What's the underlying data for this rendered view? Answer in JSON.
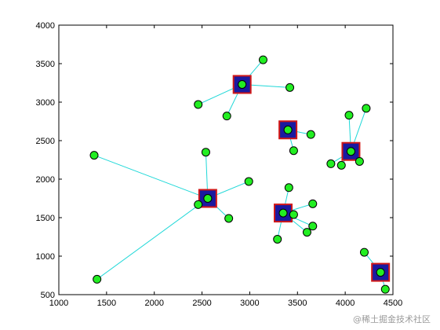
{
  "chart_data": {
    "type": "scatter",
    "title": "",
    "xlabel": "",
    "ylabel": "",
    "xlim": [
      1000,
      4500
    ],
    "ylim": [
      500,
      4000
    ],
    "xticks": [
      "1000",
      "1500",
      "2000",
      "2500",
      "3000",
      "3500",
      "4000",
      "4500"
    ],
    "yticks": [
      "4000",
      "3500",
      "3000",
      "2500",
      "2000",
      "1500",
      "1000",
      "500"
    ],
    "grid": false,
    "colors": {
      "centroid_fill": "#1a1aa0",
      "centroid_border": "#d01818",
      "point_fill": "#22ee22",
      "point_edge": "#000000",
      "link": "#20d8d8"
    },
    "clusters": [
      {
        "centroid": [
          2560,
          1750
        ],
        "points": [
          [
            1370,
            2310
          ],
          [
            1400,
            700
          ],
          [
            2540,
            2350
          ],
          [
            2460,
            1670
          ],
          [
            2780,
            1490
          ],
          [
            2990,
            1970
          ],
          [
            2560,
            1750
          ]
        ]
      },
      {
        "centroid": [
          2920,
          3230
        ],
        "points": [
          [
            2460,
            2970
          ],
          [
            2760,
            2820
          ],
          [
            3140,
            3550
          ],
          [
            3420,
            3190
          ],
          [
            2920,
            3230
          ]
        ]
      },
      {
        "centroid": [
          3400,
          2640
        ],
        "points": [
          [
            3640,
            2580
          ],
          [
            3460,
            2370
          ],
          [
            3400,
            2640
          ]
        ]
      },
      {
        "centroid": [
          4060,
          2360
        ],
        "points": [
          [
            3850,
            2200
          ],
          [
            3960,
            2180
          ],
          [
            4040,
            2830
          ],
          [
            4220,
            2920
          ],
          [
            4150,
            2230
          ],
          [
            4060,
            2360
          ]
        ]
      },
      {
        "centroid": [
          3350,
          1560
        ],
        "points": [
          [
            3410,
            1890
          ],
          [
            3290,
            1220
          ],
          [
            3460,
            1540
          ],
          [
            3600,
            1310
          ],
          [
            3660,
            1680
          ],
          [
            3660,
            1390
          ],
          [
            3350,
            1560
          ]
        ]
      },
      {
        "centroid": [
          4370,
          790
        ],
        "points": [
          [
            4200,
            1050
          ],
          [
            4420,
            570
          ],
          [
            4370,
            790
          ]
        ]
      }
    ]
  },
  "watermark": "@稀土掘金技术社区"
}
